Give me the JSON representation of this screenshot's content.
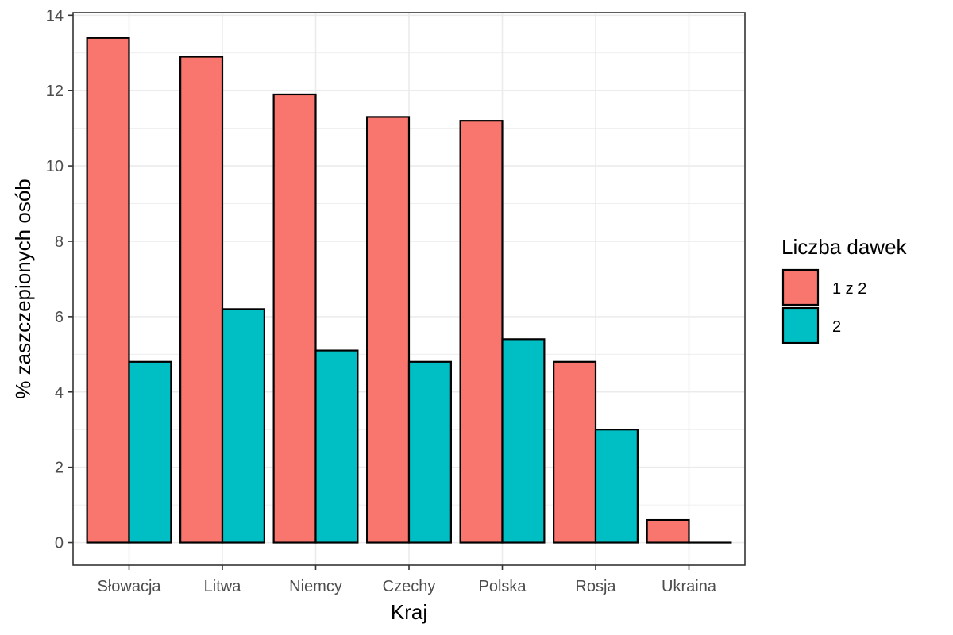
{
  "chart_data": {
    "type": "bar",
    "categories": [
      "Słowacja",
      "Litwa",
      "Niemcy",
      "Czechy",
      "Polska",
      "Rosja",
      "Ukraina"
    ],
    "series": [
      {
        "name": "1 z 2",
        "values": [
          13.4,
          12.9,
          11.9,
          11.3,
          11.2,
          4.8,
          0.6
        ],
        "color": "#F8766D"
      },
      {
        "name": "2",
        "values": [
          4.8,
          6.2,
          5.1,
          4.8,
          5.4,
          3.0,
          0.0
        ],
        "color": "#00BFC4"
      }
    ],
    "xlabel": "Kraj",
    "ylabel": "% zaszczepionych osób",
    "ylim": [
      -0.6,
      14.07
    ],
    "yticks": [
      0,
      2,
      4,
      6,
      8,
      10,
      12,
      14
    ],
    "grid": true,
    "legend": {
      "title": "Liczba dawek",
      "position": "right"
    }
  }
}
